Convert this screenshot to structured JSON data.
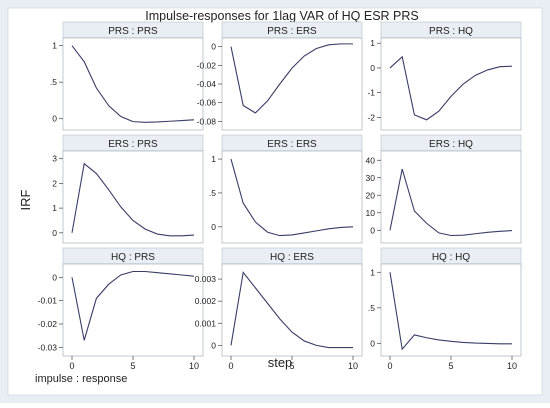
{
  "chart_data": {
    "type": "line",
    "title": "Impulse-responses for 1lag VAR of HQ ESR PRS",
    "ylabel": "IRF",
    "xlabel": "step",
    "note": "impulse : response",
    "panels": [
      {
        "title": "PRS : PRS",
        "ylim": [
          -0.1,
          1.05
        ],
        "yticks": [
          0,
          0.5,
          1
        ],
        "ytick_labels": [
          "0",
          ".5",
          "1"
        ],
        "xticks": [],
        "x": [
          0,
          1,
          2,
          3,
          4,
          5,
          6,
          7,
          8,
          9,
          10
        ],
        "values": [
          1.0,
          0.78,
          0.42,
          0.18,
          0.03,
          -0.04,
          -0.05,
          -0.045,
          -0.035,
          -0.025,
          -0.015
        ]
      },
      {
        "title": "PRS : ERS",
        "ylim": [
          -0.085,
          0.005
        ],
        "yticks": [
          0,
          -0.02,
          -0.04,
          -0.06,
          -0.08
        ],
        "ytick_labels": [
          "0",
          "-0.02",
          "-0.04",
          "-0.06",
          "-0.08"
        ],
        "xticks": [],
        "x": [
          0,
          1,
          2,
          3,
          4,
          5,
          6,
          7,
          8,
          9,
          10
        ],
        "values": [
          0,
          -0.063,
          -0.071,
          -0.058,
          -0.04,
          -0.023,
          -0.01,
          -0.002,
          0.002,
          0.003,
          0.003
        ]
      },
      {
        "title": "PRS : HQ",
        "ylim": [
          -2.35,
          1.05
        ],
        "yticks": [
          1,
          0,
          -1,
          -2
        ],
        "ytick_labels": [
          "1",
          "0",
          "-1",
          "-2"
        ],
        "xticks": [],
        "x": [
          0,
          1,
          2,
          3,
          4,
          5,
          6,
          7,
          8,
          9,
          10
        ],
        "values": [
          0,
          0.45,
          -1.9,
          -2.1,
          -1.75,
          -1.15,
          -0.65,
          -0.3,
          -0.08,
          0.05,
          0.07
        ]
      },
      {
        "title": "ERS : PRS",
        "ylim": [
          -0.25,
          3.15
        ],
        "yticks": [
          0,
          1,
          2,
          3
        ],
        "ytick_labels": [
          "0",
          "1",
          "2",
          "3"
        ],
        "xticks": [],
        "x": [
          0,
          1,
          2,
          3,
          4,
          5,
          6,
          7,
          8,
          9,
          10
        ],
        "values": [
          0,
          2.8,
          2.4,
          1.75,
          1.05,
          0.5,
          0.15,
          -0.05,
          -0.12,
          -0.12,
          -0.09
        ]
      },
      {
        "title": "ERS : ERS",
        "ylim": [
          -0.18,
          1.06
        ],
        "yticks": [
          0,
          0.5,
          1
        ],
        "ytick_labels": [
          "0",
          ".5",
          "1"
        ],
        "xticks": [],
        "x": [
          0,
          1,
          2,
          3,
          4,
          5,
          6,
          7,
          8,
          9,
          10
        ],
        "values": [
          1.0,
          0.35,
          0.07,
          -0.08,
          -0.13,
          -0.12,
          -0.09,
          -0.06,
          -0.03,
          -0.01,
          0.0
        ]
      },
      {
        "title": "ERS : HQ",
        "ylim": [
          -5,
          43
        ],
        "yticks": [
          0,
          10,
          20,
          30,
          40
        ],
        "ytick_labels": [
          "0",
          "10",
          "20",
          "30",
          "40"
        ],
        "xticks": [],
        "x": [
          0,
          1,
          2,
          3,
          4,
          5,
          6,
          7,
          8,
          9,
          10
        ],
        "values": [
          0,
          35,
          11,
          4,
          -1.5,
          -3,
          -2.8,
          -2,
          -1.2,
          -0.6,
          -0.2
        ]
      },
      {
        "title": "HQ : PRS",
        "ylim": [
          -0.032,
          0.004
        ],
        "yticks": [
          0,
          -0.01,
          -0.02,
          -0.03
        ],
        "ytick_labels": [
          "0",
          "-0.01",
          "-0.02",
          "-0.03"
        ],
        "xticks": [
          0,
          5,
          10
        ],
        "x": [
          0,
          1,
          2,
          3,
          4,
          5,
          6,
          7,
          8,
          9,
          10
        ],
        "values": [
          0,
          -0.027,
          -0.009,
          -0.003,
          0.001,
          0.0025,
          0.0025,
          0.002,
          0.0015,
          0.001,
          0.0005
        ]
      },
      {
        "title": "HQ : ERS",
        "ylim": [
          -0.0003,
          0.0035
        ],
        "yticks": [
          0,
          0.001,
          0.002,
          0.003
        ],
        "ytick_labels": [
          "0",
          "0.001",
          "0.002",
          "0.003"
        ],
        "xticks": [
          0,
          5,
          10
        ],
        "x": [
          0,
          1,
          2,
          3,
          4,
          5,
          6,
          7,
          8,
          9,
          10
        ],
        "values": [
          0,
          0.0033,
          0.0026,
          0.0019,
          0.0012,
          0.0006,
          0.0002,
          0.0,
          -0.0001,
          -0.0001,
          -0.0001
        ]
      },
      {
        "title": "HQ : HQ",
        "ylim": [
          -0.12,
          1.06
        ],
        "yticks": [
          0,
          0.5,
          1
        ],
        "ytick_labels": [
          "0",
          ".5",
          "1"
        ],
        "xticks": [
          0,
          5,
          10
        ],
        "x": [
          0,
          1,
          2,
          3,
          4,
          5,
          6,
          7,
          8,
          9,
          10
        ],
        "values": [
          1.0,
          -0.08,
          0.12,
          0.08,
          0.05,
          0.03,
          0.015,
          0.005,
          0.0,
          -0.005,
          -0.005
        ]
      }
    ],
    "grid": false,
    "colors": {
      "line": "#3a3d66",
      "panel_bg": "#ffffff",
      "strip_bg": "#e8eef4",
      "outer_bg": "#e8eef4"
    }
  }
}
